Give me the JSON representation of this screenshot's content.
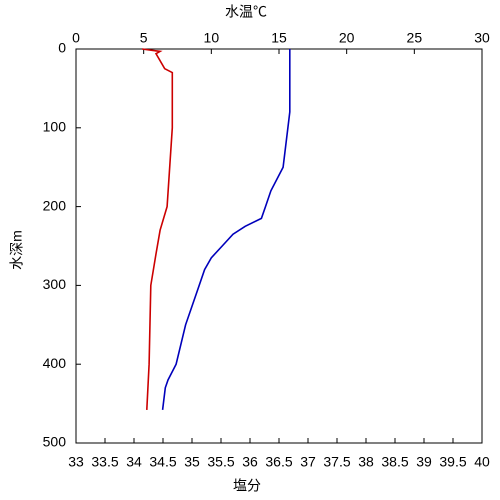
{
  "chart_data": {
    "type": "line",
    "title": "水温℃",
    "x2_label": "塩分",
    "y_label": "水深m",
    "title_color": "#0000cc",
    "x2_label_color": "#cc0000",
    "xlim": [
      0,
      30
    ],
    "xticks": [
      0,
      5,
      10,
      15,
      20,
      25,
      30
    ],
    "x2lim": [
      33,
      40
    ],
    "x2ticks": [
      33,
      33.5,
      34,
      34.5,
      35,
      35.5,
      36,
      36.5,
      37,
      37.5,
      38,
      38.5,
      39,
      39.5,
      40
    ],
    "ylim": [
      0,
      500
    ],
    "yticks": [
      0,
      100,
      200,
      300,
      400,
      500
    ],
    "y_inverted": true,
    "series": [
      {
        "color": "#0000bb",
        "axis": "x",
        "values": [
          15.8,
          15.8,
          15.8,
          15.3,
          14.4,
          14.0,
          13.7,
          12.5,
          11.6,
          10.8,
          10.0,
          9.5,
          9.1,
          8.1,
          7.4,
          6.8,
          6.6,
          6.4
        ],
        "depth": [
          0,
          40,
          80,
          150,
          180,
          200,
          215,
          225,
          235,
          250,
          265,
          280,
          300,
          350,
          400,
          420,
          430,
          458
        ]
      },
      {
        "color": "#cc0000",
        "axis": "x2",
        "values": [
          34.14,
          34.45,
          34.38,
          34.53,
          34.66,
          34.66,
          34.57,
          34.45,
          34.38,
          34.29,
          34.26,
          34.22
        ],
        "depth": [
          0,
          3,
          6,
          25,
          30,
          100,
          200,
          230,
          260,
          300,
          400,
          458
        ]
      }
    ]
  }
}
